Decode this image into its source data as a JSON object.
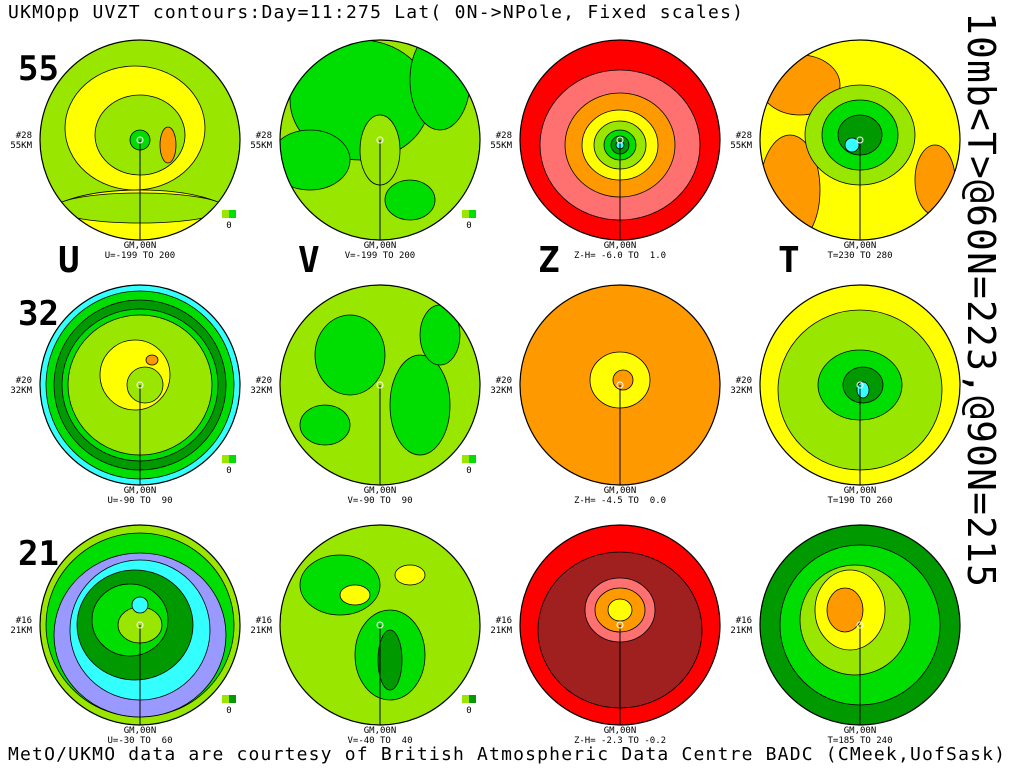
{
  "title": "UKMOpp UVZT contours:Day=11:275 Lat( 0N->NPole, Fixed scales)",
  "side_label": "10mb<T>@60N=223,@90N=215",
  "footer": "MetO/UKMO data are courtesy of British Atmospheric Data Centre BADC (CMeek,UofSask)",
  "columns": [
    "U",
    "V",
    "Z",
    "T"
  ],
  "rows": [
    {
      "label": "55",
      "panels": [
        {
          "level": "#28",
          "height": "55KM",
          "meridian": "GM,00N",
          "range": "U=-199 TO 200",
          "key": "0"
        },
        {
          "level": "#28",
          "height": "55KM",
          "meridian": "GM,00N",
          "range": "V=-199 TO 200",
          "key": "0"
        },
        {
          "level": "#28",
          "height": "55KM",
          "meridian": "GM,00N",
          "range": "Z-H= -6.0 TO  1.0"
        },
        {
          "level": "#28",
          "height": "55KM",
          "meridian": "GM,00N",
          "range": "T=230 TO 280"
        }
      ]
    },
    {
      "label": "32",
      "panels": [
        {
          "level": "#20",
          "height": "32KM",
          "meridian": "GM,00N",
          "range": "U=-90 TO  90",
          "key": "0"
        },
        {
          "level": "#20",
          "height": "32KM",
          "meridian": "GM,00N",
          "range": "V=-90 TO  90",
          "key": "0"
        },
        {
          "level": "#20",
          "height": "32KM",
          "meridian": "GM,00N",
          "range": "Z-H= -4.5 TO  0.0"
        },
        {
          "level": "#20",
          "height": "32KM",
          "meridian": "GM,00N",
          "range": "T=190 TO 260"
        }
      ]
    },
    {
      "label": "21",
      "panels": [
        {
          "level": "#16",
          "height": "21KM",
          "meridian": "GM,00N",
          "range": "U=-30 TO  60",
          "key": "0"
        },
        {
          "level": "#16",
          "height": "21KM",
          "meridian": "GM,00N",
          "range": "V=-40 TO  40",
          "key": "0"
        },
        {
          "level": "#16",
          "height": "21KM",
          "meridian": "GM,00N",
          "range": "Z-H= -2.3 TO -0.2"
        },
        {
          "level": "#16",
          "height": "21KM",
          "meridian": "GM,00N",
          "range": "T=185 TO 240"
        }
      ]
    }
  ]
}
